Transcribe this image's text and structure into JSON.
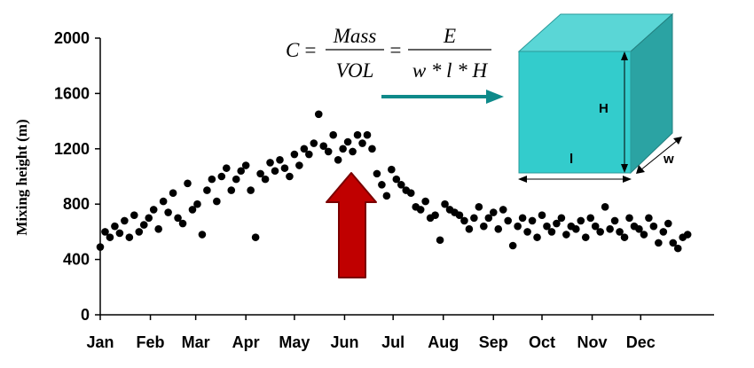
{
  "chart_data": {
    "type": "scatter",
    "title": "",
    "ylabel": "Mixing height (m)",
    "xlabel": "",
    "xlim": [
      1,
      365
    ],
    "ylim": [
      0,
      2000
    ],
    "yticks": [
      "0",
      "400",
      "800",
      "1200",
      "1600",
      "2000"
    ],
    "xticks": [
      {
        "label": "Jan",
        "day": 1
      },
      {
        "label": "Feb",
        "day": 32
      },
      {
        "label": "Mar",
        "day": 60
      },
      {
        "label": "Apr",
        "day": 91
      },
      {
        "label": "May",
        "day": 121
      },
      {
        "label": "Jun",
        "day": 152
      },
      {
        "label": "Jul",
        "day": 182
      },
      {
        "label": "Aug",
        "day": 213
      },
      {
        "label": "Sep",
        "day": 244
      },
      {
        "label": "Oct",
        "day": 274
      },
      {
        "label": "Nov",
        "day": 305
      },
      {
        "label": "Dec",
        "day": 335
      }
    ],
    "marker_color": "#000000",
    "series": [
      {
        "x": [
          1,
          4,
          7,
          10,
          13,
          16,
          19,
          22,
          25,
          28,
          31,
          34,
          37,
          40,
          43,
          46,
          49,
          52,
          55,
          58,
          61,
          64,
          67,
          70,
          73,
          76,
          79,
          82,
          85,
          88,
          91,
          94,
          97,
          100,
          103,
          106,
          109,
          112,
          115,
          118,
          121,
          124,
          127,
          130,
          133,
          136,
          139,
          142,
          145,
          148,
          151,
          154,
          157,
          160,
          163,
          166,
          169,
          172,
          175,
          178,
          181,
          184,
          187,
          190,
          193,
          196,
          199,
          202,
          205,
          208,
          211,
          214,
          217,
          220,
          223,
          226,
          229,
          232,
          235,
          238,
          241,
          244,
          247,
          250,
          253,
          256,
          259,
          262,
          265,
          268,
          271,
          274,
          277,
          280,
          283,
          286,
          289,
          292,
          295,
          298,
          301,
          304,
          307,
          310,
          313,
          316,
          319,
          322,
          325,
          328,
          331,
          334,
          337,
          340,
          343,
          346,
          349,
          352,
          355,
          358,
          361,
          364
        ],
        "y": [
          490,
          600,
          560,
          640,
          590,
          680,
          560,
          720,
          600,
          650,
          700,
          760,
          620,
          820,
          740,
          880,
          700,
          660,
          950,
          760,
          800,
          580,
          900,
          980,
          820,
          1000,
          1060,
          900,
          980,
          1040,
          1080,
          900,
          560,
          1020,
          980,
          1100,
          1040,
          1120,
          1060,
          1000,
          1160,
          1080,
          1200,
          1160,
          1240,
          1450,
          1220,
          1180,
          1300,
          1120,
          1200,
          1250,
          1180,
          1300,
          1240,
          1300,
          1200,
          1020,
          940,
          860,
          1050,
          980,
          940,
          900,
          880,
          780,
          760,
          820,
          700,
          720,
          540,
          800,
          760,
          740,
          720,
          680,
          620,
          700,
          780,
          640,
          700,
          740,
          620,
          760,
          680,
          500,
          640,
          700,
          600,
          680,
          560,
          720,
          640,
          600,
          660,
          700,
          580,
          640,
          620,
          680,
          560,
          700,
          640,
          600,
          780,
          620,
          680,
          600,
          560,
          700,
          640,
          620,
          580,
          700,
          640,
          520,
          600,
          660,
          520,
          480,
          560,
          580
        ]
      }
    ]
  },
  "annotations": {
    "formula": {
      "lhs": "C",
      "eq1": "=",
      "frac1_num": "Mass",
      "frac1_den": "VOL",
      "eq2": "=",
      "frac2_num": "E",
      "frac2_den": "w * l * H"
    },
    "box": {
      "height_label": "H",
      "length_label": "l",
      "width_label": "w",
      "face_color": "#33cccc",
      "side_color": "#2ba3a3",
      "top_color": "#5ad6d6"
    },
    "arrow_color": "#0e8a8a",
    "big_arrow_color": "#c00000"
  }
}
